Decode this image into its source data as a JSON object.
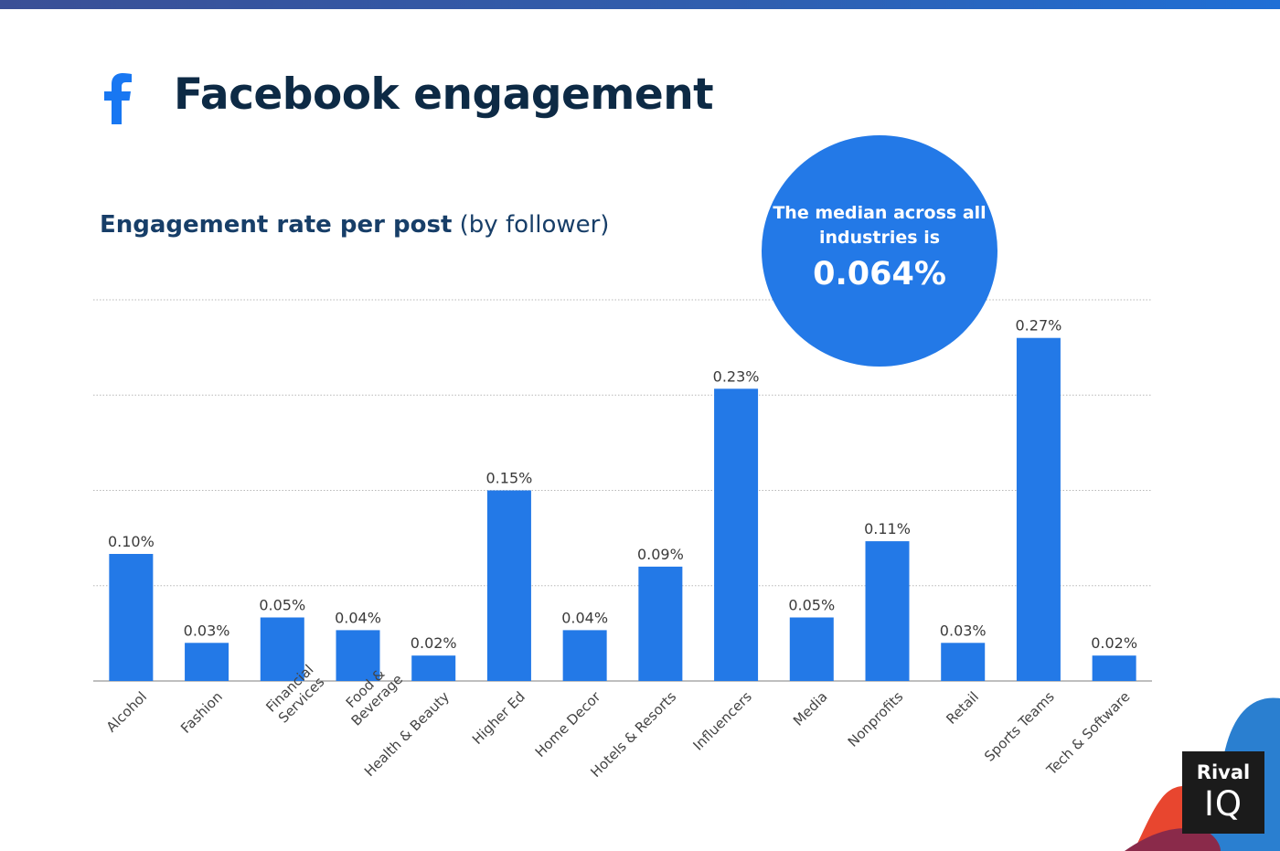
{
  "header": {
    "title": "Facebook engagement",
    "subtitle_bold": "Engagement rate per post",
    "subtitle_normal": "(by follower)"
  },
  "callout": {
    "text_line1": "The median across all",
    "text_line2": "industries is",
    "value": "0.064%"
  },
  "brand": {
    "logo_line1": "Rival",
    "logo_line2": "IQ"
  },
  "colors": {
    "bar": "#2379e7",
    "title": "#0d2a45",
    "subtitle": "#173e68",
    "grid": "#b8b8b8"
  },
  "chart_data": {
    "type": "bar",
    "title": "Engagement rate per post (by follower)",
    "categories": [
      "Alcohol",
      "Fashion",
      "Financial Services",
      "Food & Beverage",
      "Health & Beauty",
      "Higher Ed",
      "Home Decor",
      "Hotels & Resorts",
      "Influencers",
      "Media",
      "Nonprofits",
      "Retail",
      "Sports Teams",
      "Tech & Software"
    ],
    "category_lines": [
      [
        "Alcohol"
      ],
      [
        "Fashion"
      ],
      [
        "Financial",
        "Services"
      ],
      [
        "Food &",
        "Beverage"
      ],
      [
        "Health & Beauty"
      ],
      [
        "Higher Ed"
      ],
      [
        "Home Decor"
      ],
      [
        "Hotels & Resorts"
      ],
      [
        "Influencers"
      ],
      [
        "Media"
      ],
      [
        "Nonprofits"
      ],
      [
        "Retail"
      ],
      [
        "Sports Teams"
      ],
      [
        "Tech & Software"
      ]
    ],
    "values": [
      0.1,
      0.03,
      0.05,
      0.04,
      0.02,
      0.15,
      0.04,
      0.09,
      0.23,
      0.05,
      0.11,
      0.03,
      0.27,
      0.02
    ],
    "value_labels": [
      "0.10%",
      "0.03%",
      "0.05%",
      "0.04%",
      "0.02%",
      "0.15%",
      "0.04%",
      "0.09%",
      "0.23%",
      "0.05%",
      "0.11%",
      "0.03%",
      "0.27%",
      "0.02%"
    ],
    "ylim": [
      0,
      0.3
    ],
    "grid": true,
    "gridline_count": 4
  }
}
